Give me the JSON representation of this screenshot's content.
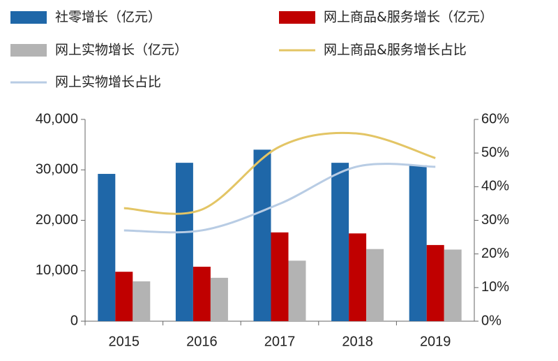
{
  "chart_data": {
    "type": "bar-line",
    "categories": [
      "2015",
      "2016",
      "2017",
      "2018",
      "2019"
    ],
    "series": [
      {
        "name": "社零增长（亿元）",
        "type": "bar",
        "color": "#1f67a8",
        "values": [
          29200,
          31400,
          34000,
          31400,
          30900
        ]
      },
      {
        "name": "网上商品&服务增长（亿元）",
        "type": "bar",
        "color": "#c00000",
        "values": [
          9800,
          10800,
          17600,
          17400,
          15100
        ]
      },
      {
        "name": "网上实物增长（亿元）",
        "type": "bar",
        "color": "#b3b3b3",
        "values": [
          7900,
          8600,
          12000,
          14300,
          14200
        ]
      },
      {
        "name": "网上商品&服务增长占比",
        "type": "line",
        "axis": "y2",
        "color": "#e3c565",
        "values": [
          33.6,
          33.2,
          51.9,
          55.8,
          48.5
        ]
      },
      {
        "name": "网上实物增长占比",
        "type": "line",
        "axis": "y2",
        "color": "#b8cce4",
        "values": [
          27.0,
          27.0,
          34.9,
          46.0,
          45.9
        ]
      }
    ],
    "ylim": [
      0,
      40000
    ],
    "yticks": [
      0,
      {
        "value": 10000,
        "label": "10,000"
      },
      {
        "value": 20000,
        "label": "20,000"
      },
      {
        "value": 30000,
        "label": "30,000"
      },
      {
        "value": 40000,
        "label": "40,000"
      }
    ],
    "y2lim": [
      0,
      60
    ],
    "y2ticks": [
      {
        "value": 0,
        "label": "0%"
      },
      {
        "value": 10,
        "label": "10%"
      },
      {
        "value": 20,
        "label": "20%"
      },
      {
        "value": 30,
        "label": "30%"
      },
      {
        "value": 40,
        "label": "40%"
      },
      {
        "value": 50,
        "label": "50%"
      },
      {
        "value": 60,
        "label": "60%"
      }
    ],
    "legend": "top"
  }
}
